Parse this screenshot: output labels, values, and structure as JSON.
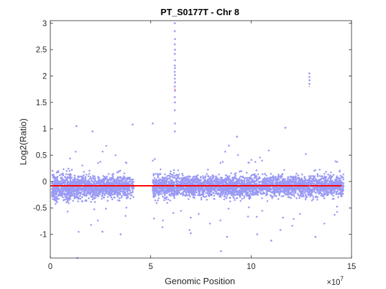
{
  "chart_data": {
    "type": "scatter",
    "title": "PT_S0177T - Chr 8",
    "xlabel": "Genomic Position",
    "ylabel": "Log2(Ratio)",
    "x_exponent_label": "×10",
    "x_exponent_power": "7",
    "xlim": [
      0,
      150000000
    ],
    "ylim": [
      -1.45,
      3.05
    ],
    "x_ticks": [
      0,
      50000000,
      100000000,
      150000000
    ],
    "x_tick_labels": [
      "0",
      "5",
      "10",
      "15"
    ],
    "y_ticks": [
      -1,
      -0.5,
      0,
      0.5,
      1,
      1.5,
      2,
      2.5,
      3
    ],
    "y_tick_labels": [
      "-1",
      "-0.5",
      "0",
      "0.5",
      "1",
      "1.5",
      "2",
      "2.5",
      "3"
    ],
    "grid": false,
    "colors": {
      "points": "#9a9af5",
      "segment": "#ff0000"
    },
    "series": [
      {
        "kind": "points",
        "clusters": [
          {
            "x_range": [
              800000,
              10000000
            ],
            "count": 380,
            "center": -0.12,
            "spread": 0.26
          },
          {
            "x_range": [
              10000000,
              23000000
            ],
            "count": 480,
            "center": -0.1,
            "spread": 0.22
          },
          {
            "x_range": [
              23000000,
              39000000
            ],
            "count": 560,
            "center": -0.1,
            "spread": 0.2
          },
          {
            "x_range": [
              39000000,
              41500000
            ],
            "count": 50,
            "center": -0.1,
            "spread": 0.22
          },
          {
            "x_range": [
              51000000,
              62000000
            ],
            "count": 430,
            "center": -0.1,
            "spread": 0.22
          },
          {
            "x_range": [
              62500000,
              84000000
            ],
            "count": 760,
            "center": -0.08,
            "spread": 0.2
          },
          {
            "x_range": [
              84000000,
              100000000
            ],
            "count": 560,
            "center": -0.1,
            "spread": 0.21
          },
          {
            "x_range": [
              100000000,
              146000000
            ],
            "count": 1500,
            "center": -0.08,
            "spread": 0.2
          }
        ],
        "spike_points": [
          {
            "x": 62000000,
            "y": 3.0
          },
          {
            "x": 62000000,
            "y": 2.85
          },
          {
            "x": 62100000,
            "y": 2.7
          },
          {
            "x": 62000000,
            "y": 2.6
          },
          {
            "x": 62100000,
            "y": 2.5
          },
          {
            "x": 62000000,
            "y": 2.42
          },
          {
            "x": 62100000,
            "y": 2.3
          },
          {
            "x": 62000000,
            "y": 2.2
          },
          {
            "x": 62100000,
            "y": 2.15
          },
          {
            "x": 62000000,
            "y": 2.08
          },
          {
            "x": 62100000,
            "y": 2.02
          },
          {
            "x": 62000000,
            "y": 1.95
          },
          {
            "x": 62100000,
            "y": 1.88
          },
          {
            "x": 62000000,
            "y": 1.8
          },
          {
            "x": 62100000,
            "y": 1.72
          },
          {
            "x": 62000000,
            "y": 1.6
          },
          {
            "x": 62100000,
            "y": 1.5
          },
          {
            "x": 62000000,
            "y": 1.35
          },
          {
            "x": 62100000,
            "y": 1.1
          },
          {
            "x": 62000000,
            "y": 0.95
          },
          {
            "x": 129000000,
            "y": 2.05
          },
          {
            "x": 129000000,
            "y": 1.98
          },
          {
            "x": 129100000,
            "y": 1.92
          },
          {
            "x": 129000000,
            "y": 1.85
          },
          {
            "x": 13000000,
            "y": 1.05
          },
          {
            "x": 41000000,
            "y": 1.08
          },
          {
            "x": 51000000,
            "y": 1.1
          },
          {
            "x": 21000000,
            "y": 0.95
          },
          {
            "x": 117000000,
            "y": 1.02
          },
          {
            "x": 85000000,
            "y": -1.32
          },
          {
            "x": 13500000,
            "y": -1.45
          },
          {
            "x": 26000000,
            "y": -0.95
          },
          {
            "x": 88000000,
            "y": -1.05
          },
          {
            "x": 103000000,
            "y": -1.0
          },
          {
            "x": 110000000,
            "y": -1.12
          },
          {
            "x": 35000000,
            "y": -1.0
          },
          {
            "x": 70000000,
            "y": -0.98
          },
          {
            "x": 132000000,
            "y": -1.05
          },
          {
            "x": 93000000,
            "y": 0.85
          }
        ]
      },
      {
        "kind": "segments",
        "segments": [
          {
            "x0": 0,
            "x1": 61800000,
            "y": -0.08
          },
          {
            "x0": 61800000,
            "x1": 62300000,
            "y": 1.75
          },
          {
            "x0": 62300000,
            "x1": 128800000,
            "y": -0.08
          },
          {
            "x0": 128800000,
            "x1": 129200000,
            "y": 1.8
          },
          {
            "x0": 129200000,
            "x1": 145000000,
            "y": -0.08
          }
        ]
      }
    ]
  }
}
